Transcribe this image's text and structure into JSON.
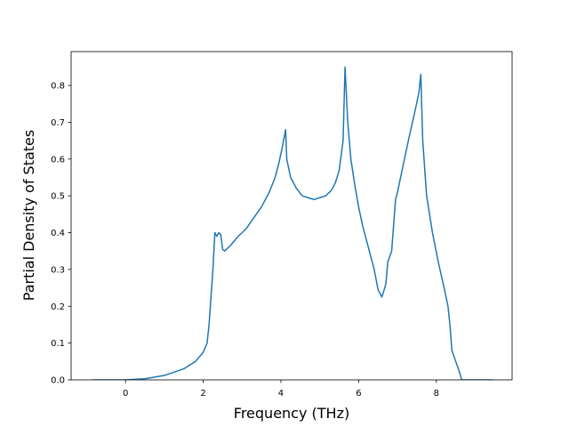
{
  "chart_data": {
    "type": "line",
    "xlabel": "Frequency (THz)",
    "ylabel": "Partial Density of States",
    "series": [
      {
        "color": "#1f77b4",
        "x": [
          -0.85,
          0,
          0.5,
          1.0,
          1.5,
          1.8,
          2.0,
          2.1,
          2.15,
          2.25,
          2.3,
          2.35,
          2.4,
          2.45,
          2.5,
          2.55,
          2.7,
          2.9,
          3.1,
          3.3,
          3.5,
          3.7,
          3.85,
          3.95,
          4.05,
          4.12,
          4.15,
          4.25,
          4.4,
          4.55,
          4.7,
          4.85,
          5.0,
          5.15,
          5.3,
          5.4,
          5.5,
          5.6,
          5.65,
          5.72,
          5.8,
          5.9,
          6.0,
          6.1,
          6.2,
          6.3,
          6.4,
          6.5,
          6.6,
          6.7,
          6.75,
          6.85,
          6.95,
          7.0,
          7.1,
          7.2,
          7.3,
          7.45,
          7.55,
          7.6,
          7.65,
          7.75,
          7.9,
          8.05,
          8.2,
          8.3,
          8.35,
          8.4,
          8.5,
          8.6,
          8.65,
          9.45
        ],
        "values": [
          0,
          0,
          0.003,
          0.012,
          0.03,
          0.05,
          0.075,
          0.1,
          0.15,
          0.3,
          0.4,
          0.39,
          0.4,
          0.395,
          0.355,
          0.35,
          0.365,
          0.39,
          0.41,
          0.44,
          0.47,
          0.51,
          0.55,
          0.59,
          0.64,
          0.68,
          0.6,
          0.55,
          0.52,
          0.5,
          0.495,
          0.49,
          0.495,
          0.5,
          0.515,
          0.535,
          0.57,
          0.65,
          0.85,
          0.7,
          0.6,
          0.53,
          0.47,
          0.42,
          0.38,
          0.34,
          0.3,
          0.245,
          0.225,
          0.26,
          0.32,
          0.35,
          0.49,
          0.51,
          0.56,
          0.61,
          0.66,
          0.73,
          0.78,
          0.83,
          0.65,
          0.5,
          0.4,
          0.32,
          0.25,
          0.2,
          0.15,
          0.08,
          0.05,
          0.02,
          0,
          0
        ]
      }
    ],
    "xlim": [
      -1.4,
      9.95
    ],
    "xticks": [
      0,
      2,
      4,
      6,
      8
    ],
    "ylim": [
      0,
      0.892
    ],
    "yticks": [
      {
        "value": 0,
        "label": "0.0"
      },
      0.1,
      0.2,
      0.3,
      0.4,
      0.5,
      0.6,
      0.7,
      0.8
    ],
    "grid": false
  }
}
